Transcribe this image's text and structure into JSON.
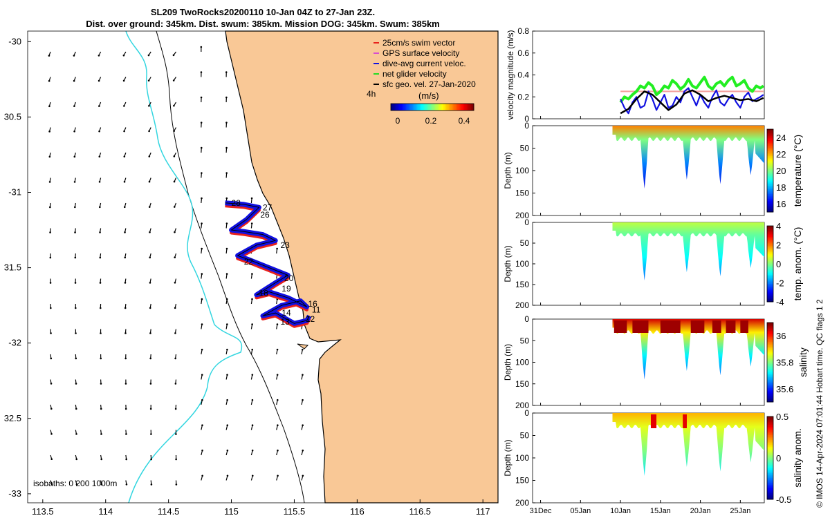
{
  "title_line1": "SL209 TwoRocks20200110 10-Jan 04Z to 27-Jan 23Z.",
  "title_line2": "Dist. over ground: 345km. Dist. swum: 385km. Mission DOG: 345km. Swum: 385km",
  "timestamp": "© IMOS 14-Apr-2024 07:01:44 Hobart time. QC flags 1  2",
  "colors": {
    "land": "#f9c896",
    "swim_vector": "#e8221c",
    "gps_velocity": "#d64fd0",
    "dive_avg": "#1010e0",
    "net_glider": "#22dd22",
    "sfc_geo": "#000000",
    "isobath_200": "#33d6e0"
  },
  "map": {
    "xlabels": [
      "113.5",
      "114",
      "114.5",
      "115",
      "115.5",
      "116",
      "116.5",
      "117"
    ],
    "ylabels": [
      "-30",
      "30.5",
      "-31",
      "31.5",
      "-32",
      "32.5",
      "-33"
    ],
    "vector_scale_label": "4h",
    "colorbar_unit": "(m/s)",
    "colorbar_ticks": [
      "0",
      "0.2",
      "0.4"
    ],
    "isobaths_label": "isobaths: 0   200  1000m",
    "legend": [
      {
        "label": "25cm/s swim vector",
        "color": "#e8221c"
      },
      {
        "label": "GPS surface velocity",
        "color": "#d64fd0"
      },
      {
        "label": "dive-avg current veloc.",
        "color": "#1010e0"
      },
      {
        "label": "net glider velocity",
        "color": "#22dd22"
      },
      {
        "label": "sfc geo. vel. 27-Jan-2020",
        "color": "#000000"
      }
    ],
    "day_labels": [
      {
        "text": "28",
        "lon": 115.0,
        "lat": -31.07
      },
      {
        "text": "27",
        "lon": 115.25,
        "lat": -31.1
      },
      {
        "text": "26",
        "lon": 115.23,
        "lat": -31.15
      },
      {
        "text": "23",
        "lon": 115.39,
        "lat": -31.35
      },
      {
        "text": "22",
        "lon": 115.1,
        "lat": -31.46
      },
      {
        "text": "20",
        "lon": 115.42,
        "lat": -31.57
      },
      {
        "text": "19",
        "lon": 115.4,
        "lat": -31.64
      },
      {
        "text": "18",
        "lon": 115.22,
        "lat": -31.67
      },
      {
        "text": "16",
        "lon": 115.61,
        "lat": -31.74
      },
      {
        "text": "11",
        "lon": 115.64,
        "lat": -31.78
      },
      {
        "text": "14",
        "lon": 115.4,
        "lat": -31.8
      },
      {
        "text": "12",
        "lon": 115.59,
        "lat": -31.84
      },
      {
        "text": "13",
        "lon": 115.39,
        "lat": -31.86
      }
    ]
  },
  "chart_data": [
    {
      "type": "line",
      "ylabel": "velocity magnitude (m/s)",
      "ylim": [
        0,
        0.8
      ],
      "yticks": [
        "0",
        "0.2",
        "0.4",
        "0.6",
        "0.8"
      ],
      "xticks_days": [
        31,
        36,
        41,
        46,
        51,
        56
      ],
      "xlim_days": [
        30,
        59
      ],
      "series": [
        {
          "key": "swim",
          "color": "#f4a3a0",
          "x": [
            41.0,
            41.5,
            42.0,
            43.0,
            44.0,
            45.0,
            46.0,
            47.0,
            48.0,
            49.0,
            50.0,
            51.0,
            52.0,
            53.0,
            54.0,
            55.0,
            56.0,
            57.0,
            58.0,
            58.9
          ],
          "y": [
            0.25,
            0.25,
            0.25,
            0.25,
            0.25,
            0.25,
            0.25,
            0.25,
            0.25,
            0.25,
            0.25,
            0.25,
            0.25,
            0.25,
            0.25,
            0.25,
            0.25,
            0.25,
            0.25,
            0.25
          ]
        },
        {
          "key": "net",
          "color": "#22ee22",
          "x": [
            41.0,
            41.5,
            42.0,
            42.5,
            43.0,
            43.5,
            44.0,
            44.5,
            45.0,
            45.5,
            46.0,
            46.5,
            47.0,
            47.5,
            48.0,
            48.5,
            49.0,
            49.5,
            50.0,
            50.5,
            51.0,
            51.5,
            52.0,
            52.5,
            53.0,
            53.5,
            54.0,
            54.5,
            55.0,
            55.5,
            56.0,
            56.5,
            57.0,
            57.5,
            58.0,
            58.5,
            58.9
          ],
          "y": [
            0.15,
            0.2,
            0.18,
            0.22,
            0.25,
            0.3,
            0.28,
            0.33,
            0.3,
            0.22,
            0.25,
            0.3,
            0.28,
            0.35,
            0.32,
            0.27,
            0.3,
            0.36,
            0.3,
            0.28,
            0.33,
            0.38,
            0.3,
            0.27,
            0.32,
            0.34,
            0.3,
            0.35,
            0.38,
            0.3,
            0.32,
            0.35,
            0.28,
            0.25,
            0.3,
            0.28,
            0.3
          ]
        },
        {
          "key": "dive",
          "color": "#1010e0",
          "x": [
            41.0,
            41.5,
            42.0,
            42.5,
            43.0,
            43.5,
            44.0,
            44.5,
            45.0,
            45.5,
            46.0,
            46.5,
            47.0,
            47.5,
            48.0,
            48.5,
            49.0,
            49.5,
            50.0,
            50.5,
            51.0,
            51.5,
            52.0,
            52.5,
            53.0,
            53.5,
            54.0,
            54.5,
            55.0,
            55.5,
            56.0,
            56.5,
            57.0,
            57.5,
            58.0,
            58.5,
            58.9
          ],
          "y": [
            0.18,
            0.1,
            0.05,
            0.15,
            0.2,
            0.1,
            0.12,
            0.25,
            0.18,
            0.08,
            0.15,
            0.22,
            0.1,
            0.12,
            0.2,
            0.15,
            0.25,
            0.28,
            0.2,
            0.12,
            0.22,
            0.15,
            0.1,
            0.2,
            0.26,
            0.15,
            0.12,
            0.18,
            0.22,
            0.15,
            0.1,
            0.2,
            0.24,
            0.16,
            0.18,
            0.2,
            0.22
          ]
        },
        {
          "key": "geo",
          "color": "#000000",
          "x": [
            41.0,
            42.0,
            43.0,
            44.0,
            45.0,
            46.0,
            47.0,
            48.0,
            49.0,
            50.0,
            51.0,
            52.0,
            53.0,
            54.0,
            55.0,
            56.0,
            57.0,
            58.0,
            58.9
          ],
          "y": [
            0.05,
            0.09,
            0.18,
            0.25,
            0.22,
            0.15,
            0.08,
            0.13,
            0.23,
            0.26,
            0.22,
            0.16,
            0.19,
            0.21,
            0.19,
            0.17,
            0.18,
            0.16,
            0.19
          ]
        }
      ]
    },
    {
      "type": "heatmap",
      "ylabel": "Depth (m)",
      "cbar_label": "temperature (°C)",
      "yticks": [
        "0",
        "50",
        "100",
        "150",
        "200"
      ],
      "cbar_ticks": [
        "16",
        "18",
        "20",
        "22",
        "24"
      ],
      "clim": [
        15,
        25
      ],
      "surface_value": 22.5,
      "deep_value": 17.5
    },
    {
      "type": "heatmap",
      "ylabel": "Depth (m)",
      "cbar_label": "temp. anom. (°C)",
      "yticks": [
        "0",
        "50",
        "100",
        "150",
        "200"
      ],
      "cbar_ticks": [
        "-4",
        "-2",
        "0",
        "2",
        "4"
      ],
      "clim": [
        -4,
        4
      ],
      "surface_value": 0.5,
      "deep_value": -1.0
    },
    {
      "type": "heatmap",
      "ylabel": "Depth (m)",
      "cbar_label": "salinity",
      "yticks": [
        "0",
        "50",
        "100",
        "150",
        "200"
      ],
      "cbar_ticks": [
        "35.6",
        "35.8",
        "36"
      ],
      "clim": [
        35.5,
        36.1
      ],
      "surface_value": 36.05,
      "deep_value": 35.72
    },
    {
      "type": "heatmap",
      "ylabel": "Depth (m)",
      "cbar_label": "salinity anom.",
      "yticks": [
        "0",
        "50",
        "100",
        "150",
        "200"
      ],
      "cbar_ticks": [
        "-0.5",
        "0",
        "0.5"
      ],
      "clim": [
        -0.5,
        0.5
      ],
      "surface_value": 0.2,
      "deep_value": 0.0
    }
  ],
  "time_axis_labels": [
    "31Dec",
    "05Jan",
    "10Jan",
    "15Jan",
    "20Jan",
    "25Jan"
  ],
  "glider_track": {
    "lon": [
      115.62,
      115.6,
      115.5,
      115.35,
      115.25,
      115.4,
      115.55,
      115.6,
      115.45,
      115.3,
      115.2,
      115.35,
      115.45,
      115.3,
      115.15,
      115.05,
      115.2,
      115.35,
      115.25,
      115.1,
      115.0,
      115.12,
      115.22,
      115.1,
      114.95
    ],
    "lat": [
      -31.82,
      -31.85,
      -31.87,
      -31.8,
      -31.82,
      -31.75,
      -31.72,
      -31.76,
      -31.7,
      -31.66,
      -31.68,
      -31.6,
      -31.55,
      -31.5,
      -31.45,
      -31.42,
      -31.35,
      -31.32,
      -31.28,
      -31.26,
      -31.25,
      -31.18,
      -31.1,
      -31.08,
      -31.07
    ]
  }
}
